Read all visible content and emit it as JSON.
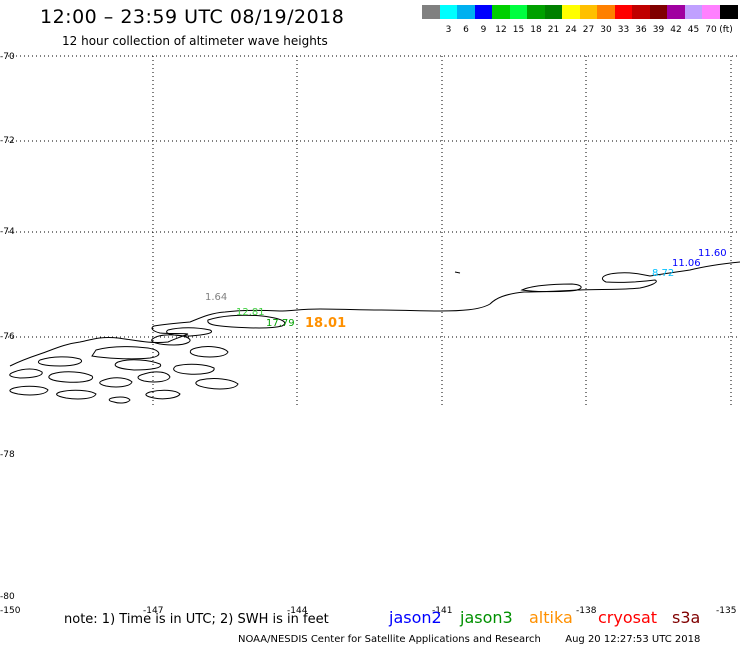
{
  "header": {
    "title": "12:00 – 23:59 UTC 08/19/2018",
    "subtitle": "12 hour collection of altimeter wave heights"
  },
  "legend": {
    "unit": "(ft)",
    "items": [
      {
        "label": "",
        "color": "#808080"
      },
      {
        "label": "3",
        "color": "#00ffff"
      },
      {
        "label": "6",
        "color": "#00b0f0"
      },
      {
        "label": "9",
        "color": "#0000ff"
      },
      {
        "label": "12",
        "color": "#00d000"
      },
      {
        "label": "15",
        "color": "#00ff40"
      },
      {
        "label": "18",
        "color": "#00a000"
      },
      {
        "label": "21",
        "color": "#008000"
      },
      {
        "label": "24",
        "color": "#ffff00"
      },
      {
        "label": "27",
        "color": "#ffc000"
      },
      {
        "label": "30",
        "color": "#ff8000"
      },
      {
        "label": "33",
        "color": "#ff0000"
      },
      {
        "label": "36",
        "color": "#c00000"
      },
      {
        "label": "39",
        "color": "#800000"
      },
      {
        "label": "42",
        "color": "#a000a0"
      },
      {
        "label": "45",
        "color": "#c0a0ff"
      },
      {
        "label": "70",
        "color": "#ff80ff"
      },
      {
        "label": "",
        "color": "#000000"
      }
    ]
  },
  "map": {
    "latitudes": [
      "-70",
      "-72",
      "-74",
      "-76",
      "-78",
      "-80"
    ],
    "longitudes": [
      "-150",
      "-147",
      "-144",
      "-141",
      "-138",
      "-135"
    ],
    "wave_heights": [
      {
        "value": "1.64",
        "color": "#808080"
      },
      {
        "value": "12.81",
        "color": "#40d040"
      },
      {
        "value": "17.79",
        "color": "#00a000"
      },
      {
        "value": "18.01",
        "color": "#ff9000"
      },
      {
        "value": "8.72",
        "color": "#00c0ff"
      },
      {
        "value": "11.06",
        "color": "#0000ff"
      },
      {
        "value": "11.60",
        "color": "#0000ff"
      }
    ]
  },
  "footer_note": "note: 1) Time is in UTC; 2) SWH is in feet",
  "satellites": [
    {
      "name": "jason2",
      "color": "#0000ff"
    },
    {
      "name": "jason3",
      "color": "#009000"
    },
    {
      "name": "altika",
      "color": "#ff9000"
    },
    {
      "name": "cryosat",
      "color": "#ff0000"
    },
    {
      "name": "s3a",
      "color": "#800000"
    }
  ],
  "credit": "NOAA/NESDIS Center for Satellite Applications and Research",
  "timestamp": "Aug 20 12:27:53 UTC 2018"
}
